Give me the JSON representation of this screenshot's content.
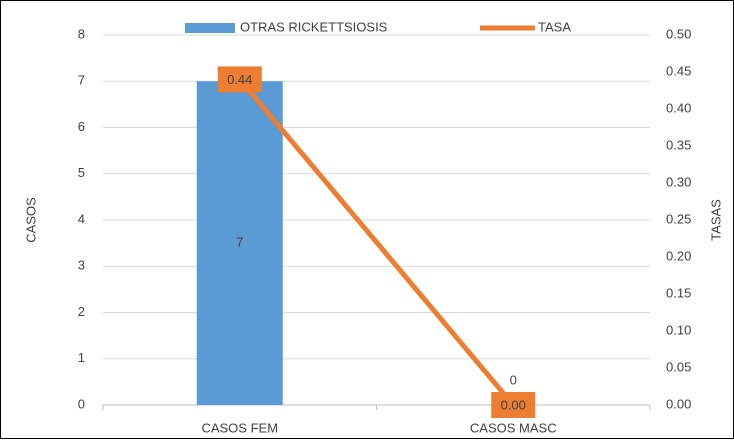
{
  "chart_data": {
    "type": "combo",
    "categories": [
      "CASOS FEM",
      "CASOS MASC"
    ],
    "series": [
      {
        "name": "OTRAS RICKETTSIOSIS",
        "type": "bar",
        "color": "#5b9bd5",
        "values": [
          7,
          0
        ]
      },
      {
        "name": "TASA",
        "type": "line",
        "color": "#ed7d31",
        "axis": "y2",
        "values": [
          0.44,
          0
        ],
        "value_labels": [
          "0.44",
          "0.00"
        ]
      }
    ],
    "ylabel": "CASOS",
    "y2label": "TASAS",
    "ylim": [
      0,
      8
    ],
    "yticks": [
      0,
      1,
      2,
      3,
      4,
      5,
      6,
      7,
      8
    ],
    "y2lim": [
      0,
      0.5
    ],
    "y2ticks": [
      {
        "value": 0,
        "label": "0.00"
      },
      0.05,
      {
        "value": 0.1,
        "label": "0.10"
      },
      0.15,
      {
        "value": 0.2,
        "label": "0.20"
      },
      0.25,
      {
        "value": 0.3,
        "label": "0.30"
      },
      0.35,
      {
        "value": 0.4,
        "label": "0.40"
      },
      0.45,
      {
        "value": 0.5,
        "label": "0.50"
      }
    ],
    "grid": true,
    "legend": "top"
  }
}
